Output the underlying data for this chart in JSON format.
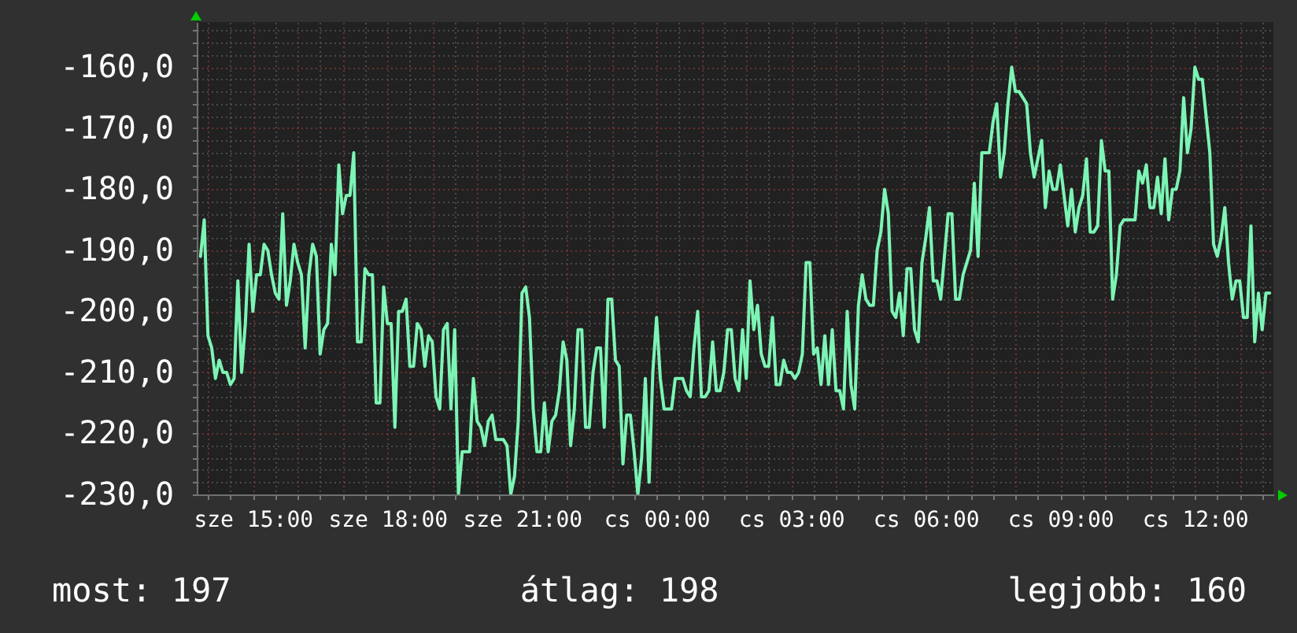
{
  "chart_data": {
    "type": "line",
    "categories": [
      null,
      null,
      null,
      null,
      null,
      null,
      null,
      null,
      null,
      null,
      null,
      null,
      null,
      null,
      "sze 15:00",
      null,
      null,
      null,
      null,
      null,
      null,
      null,
      null,
      null,
      null,
      null,
      null,
      null,
      null,
      null,
      null,
      null,
      null,
      null,
      null,
      null,
      null,
      null,
      null,
      null,
      null,
      null,
      null,
      null,
      null,
      null,
      null,
      null,
      null,
      null,
      "sze 18:00",
      null,
      null,
      null,
      null,
      null,
      null,
      null,
      null,
      null,
      null,
      null,
      null,
      null,
      null,
      null,
      null,
      null,
      null,
      null,
      null,
      null,
      null,
      null,
      null,
      null,
      null,
      null,
      null,
      null,
      null,
      null,
      null,
      null,
      null,
      null,
      "sze 21:00",
      null,
      null,
      null,
      null,
      null,
      null,
      null,
      null,
      null,
      null,
      null,
      null,
      null,
      null,
      null,
      null,
      null,
      null,
      null,
      null,
      null,
      null,
      null,
      null,
      null,
      null,
      null,
      null,
      null,
      null,
      null,
      null,
      null,
      null,
      null,
      "cs 00:00",
      null,
      null,
      null,
      null,
      null,
      null,
      null,
      null,
      null,
      null,
      null,
      null,
      null,
      null,
      null,
      null,
      null,
      null,
      null,
      null,
      null,
      null,
      null,
      null,
      null,
      null,
      null,
      null,
      null,
      null,
      null,
      null,
      null,
      null,
      null,
      "cs 03:00",
      null,
      null,
      null,
      null,
      null,
      null,
      null,
      null,
      null,
      null,
      null,
      null,
      null,
      null,
      null,
      null,
      null,
      null,
      null,
      null,
      null,
      null,
      null,
      null,
      null,
      null,
      null,
      null,
      null,
      null,
      null,
      null,
      null,
      null,
      null,
      "cs 06:00",
      null,
      null,
      null,
      null,
      null,
      null,
      null,
      null,
      null,
      null,
      null,
      null,
      null,
      null,
      null,
      null,
      null,
      null,
      null,
      null,
      null,
      null,
      null,
      null,
      null,
      null,
      null,
      null,
      null,
      null,
      null,
      null,
      null,
      null,
      null,
      "cs 09:00",
      null,
      null,
      null,
      null,
      null,
      null,
      null,
      null,
      null,
      null,
      null,
      null,
      null,
      null,
      null,
      null,
      null,
      null,
      null,
      null,
      null,
      null,
      null,
      null,
      null,
      null,
      null,
      null,
      null,
      null,
      null,
      null,
      null,
      null,
      null,
      "cs 12:00",
      null,
      null,
      null,
      null,
      null,
      null,
      null,
      null,
      null,
      null,
      null,
      null,
      null,
      null,
      null,
      null,
      null,
      null,
      null,
      null
    ],
    "series": [
      {
        "color": "#7cf4b4",
        "values": [
          -191,
          -185,
          -204,
          -206,
          -211,
          -208,
          -210,
          -210,
          -212,
          -211,
          -195,
          -210,
          -202,
          -189,
          -200,
          -194,
          -194,
          -189,
          -190,
          -194,
          -197,
          -198,
          -184,
          -199,
          -195,
          -189,
          -192,
          -194,
          -206,
          -194,
          -189,
          -191,
          -207,
          -203,
          -202,
          -189,
          -194,
          -176,
          -184,
          -181,
          -181,
          -174,
          -205,
          -205,
          -193,
          -194,
          -194,
          -215,
          -215,
          -196,
          -202,
          -202,
          -219,
          -200,
          -200,
          -198,
          -209,
          -209,
          -202,
          -203,
          -209,
          -204,
          -205,
          -214,
          -216,
          -203,
          -202,
          -216,
          -203,
          -230,
          -223,
          -223,
          -223,
          -211,
          -218,
          -219,
          -222,
          -218,
          -217,
          -221,
          -221,
          -221,
          -222,
          -230,
          -227,
          -218,
          -197,
          -196,
          -201,
          -216,
          -223,
          -223,
          -215,
          -223,
          -218,
          -217,
          -213,
          -205,
          -208,
          -222,
          -216,
          -203,
          -203,
          -219,
          -219,
          -210,
          -206,
          -206,
          -219,
          -198,
          -198,
          -208,
          -209,
          -225,
          -217,
          -217,
          -223,
          -230,
          -224,
          -211,
          -228,
          -210,
          -201,
          -211,
          -216,
          -216,
          -216,
          -211,
          -211,
          -211,
          -213,
          -214,
          -206,
          -200,
          -214,
          -214,
          -213,
          -205,
          -213,
          -213,
          -210,
          -203,
          -203,
          -211,
          -213,
          -203,
          -211,
          -195,
          -203,
          -199,
          -207,
          -209,
          -209,
          -201,
          -212,
          -212,
          -208,
          -210,
          -210,
          -211,
          -210,
          -207,
          -192,
          -192,
          -207,
          -206,
          -212,
          -204,
          -212,
          -203,
          -213,
          -213,
          -216,
          -200,
          -212,
          -216,
          -199,
          -194,
          -198,
          -199,
          -199,
          -190,
          -187,
          -180,
          -184,
          -200,
          -201,
          -197,
          -204,
          -193,
          -193,
          -203,
          -205,
          -192,
          -188,
          -183,
          -195,
          -195,
          -198,
          -191,
          -184,
          -184,
          -198,
          -198,
          -194,
          -192,
          -190,
          -179,
          -191,
          -174,
          -174,
          -174,
          -169,
          -166,
          -178,
          -174,
          -166,
          -160,
          -164,
          -164,
          -165,
          -166,
          -174,
          -178,
          -175,
          -172,
          -183,
          -177,
          -180,
          -180,
          -176,
          -181,
          -186,
          -180,
          -187,
          -183,
          -181,
          -175,
          -187,
          -187,
          -186,
          -172,
          -177,
          -177,
          -198,
          -194,
          -186,
          -185,
          -185,
          -185,
          -185,
          -177,
          -179,
          -176,
          -183,
          -183,
          -178,
          -184,
          -175,
          -185,
          -180,
          -180,
          -177,
          -165,
          -174,
          -170,
          -160,
          -162,
          -162,
          -168,
          -174,
          -189,
          -191,
          -188,
          -183,
          -192,
          -198,
          -195,
          -195,
          -201,
          -201,
          -186,
          -205,
          -197,
          -203,
          -197,
          -197
        ]
      }
    ],
    "ylim": [
      -230,
      -152.6
    ],
    "yticks": [
      {
        "value": -230,
        "label": "-230,0"
      },
      {
        "value": -228,
        "label": null
      },
      {
        "value": -226,
        "label": null
      },
      {
        "value": -224,
        "label": null
      },
      {
        "value": -222,
        "label": null
      },
      {
        "value": -220,
        "label": "-220,0"
      },
      {
        "value": -218,
        "label": null
      },
      {
        "value": -216,
        "label": null
      },
      {
        "value": -214,
        "label": null
      },
      {
        "value": -212,
        "label": null
      },
      {
        "value": -210,
        "label": "-210,0"
      },
      {
        "value": -208,
        "label": null
      },
      {
        "value": -206,
        "label": null
      },
      {
        "value": -204,
        "label": null
      },
      {
        "value": -202,
        "label": null
      },
      {
        "value": -200,
        "label": "-200,0"
      },
      {
        "value": -198,
        "label": null
      },
      {
        "value": -196,
        "label": null
      },
      {
        "value": -194,
        "label": null
      },
      {
        "value": -192,
        "label": null
      },
      {
        "value": -190,
        "label": "-190,0"
      },
      {
        "value": -188,
        "label": null
      },
      {
        "value": -186,
        "label": null
      },
      {
        "value": -184,
        "label": null
      },
      {
        "value": -182,
        "label": null
      },
      {
        "value": -180,
        "label": "-180,0"
      },
      {
        "value": -178,
        "label": null
      },
      {
        "value": -176,
        "label": null
      },
      {
        "value": -174,
        "label": null
      },
      {
        "value": -172,
        "label": null
      },
      {
        "value": -170,
        "label": "-170,0"
      },
      {
        "value": -168,
        "label": null
      },
      {
        "value": -166,
        "label": null
      },
      {
        "value": -164,
        "label": null
      },
      {
        "value": -162,
        "label": null
      },
      {
        "value": -160,
        "label": "-160,0"
      },
      {
        "value": -158,
        "label": null
      },
      {
        "value": -156,
        "label": null
      },
      {
        "value": -154,
        "label": null
      }
    ],
    "grid": true,
    "annotations": [
      "most: 197",
      "átlag: 198",
      "legjobb: 160"
    ]
  }
}
